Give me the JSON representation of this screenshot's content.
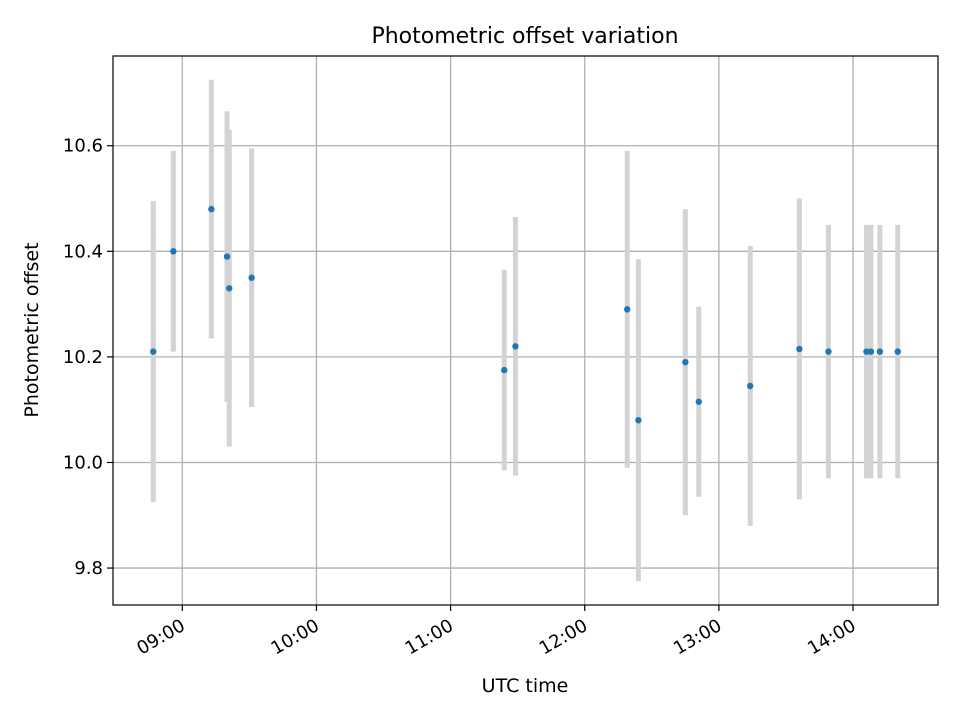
{
  "chart_data": {
    "type": "scatter",
    "title": "Photometric offset variation",
    "xlabel": "UTC time",
    "ylabel": "Photometric offset",
    "x_axis_type": "time",
    "xlim": [
      "08:29",
      "14:38"
    ],
    "ylim": [
      9.73,
      10.77
    ],
    "xticks": [
      "09:00",
      "10:00",
      "11:00",
      "12:00",
      "13:00",
      "14:00"
    ],
    "yticks": [
      9.8,
      10.0,
      10.2,
      10.4,
      10.6
    ],
    "ytick_labels": [
      "9.8",
      "10.0",
      "10.2",
      "10.4",
      "10.6"
    ],
    "grid": true,
    "series": [
      {
        "marker": "point",
        "error_bars": true,
        "points": [
          {
            "x": "08:47",
            "y": 10.21,
            "yerr": 0.285
          },
          {
            "x": "08:56",
            "y": 10.4,
            "yerr": 0.19
          },
          {
            "x": "09:13",
            "y": 10.48,
            "yerr": 0.245
          },
          {
            "x": "09:20",
            "y": 10.39,
            "yerr": 0.275
          },
          {
            "x": "09:21",
            "y": 10.33,
            "yerr": 0.3
          },
          {
            "x": "09:31",
            "y": 10.35,
            "yerr": 0.245
          },
          {
            "x": "11:24",
            "y": 10.175,
            "yerr": 0.19
          },
          {
            "x": "11:29",
            "y": 10.22,
            "yerr": 0.245
          },
          {
            "x": "12:19",
            "y": 10.29,
            "yerr": 0.3
          },
          {
            "x": "12:24",
            "y": 10.08,
            "yerr": 0.305
          },
          {
            "x": "12:45",
            "y": 10.19,
            "yerr": 0.29
          },
          {
            "x": "12:51",
            "y": 10.115,
            "yerr": 0.18
          },
          {
            "x": "13:14",
            "y": 10.145,
            "yerr": 0.265
          },
          {
            "x": "13:36",
            "y": 10.215,
            "yerr": 0.285
          },
          {
            "x": "13:49",
            "y": 10.21,
            "yerr": 0.24
          },
          {
            "x": "14:06",
            "y": 10.21,
            "yerr": 0.24
          },
          {
            "x": "14:08",
            "y": 10.21,
            "yerr": 0.24
          },
          {
            "x": "14:12",
            "y": 10.21,
            "yerr": 0.24
          },
          {
            "x": "14:20",
            "y": 10.21,
            "yerr": 0.24
          }
        ]
      }
    ],
    "colors": {
      "point": "#1f77b4",
      "errorbar": "#d3d3d3",
      "grid": "#b0b0b0",
      "axes": "#000000"
    }
  }
}
